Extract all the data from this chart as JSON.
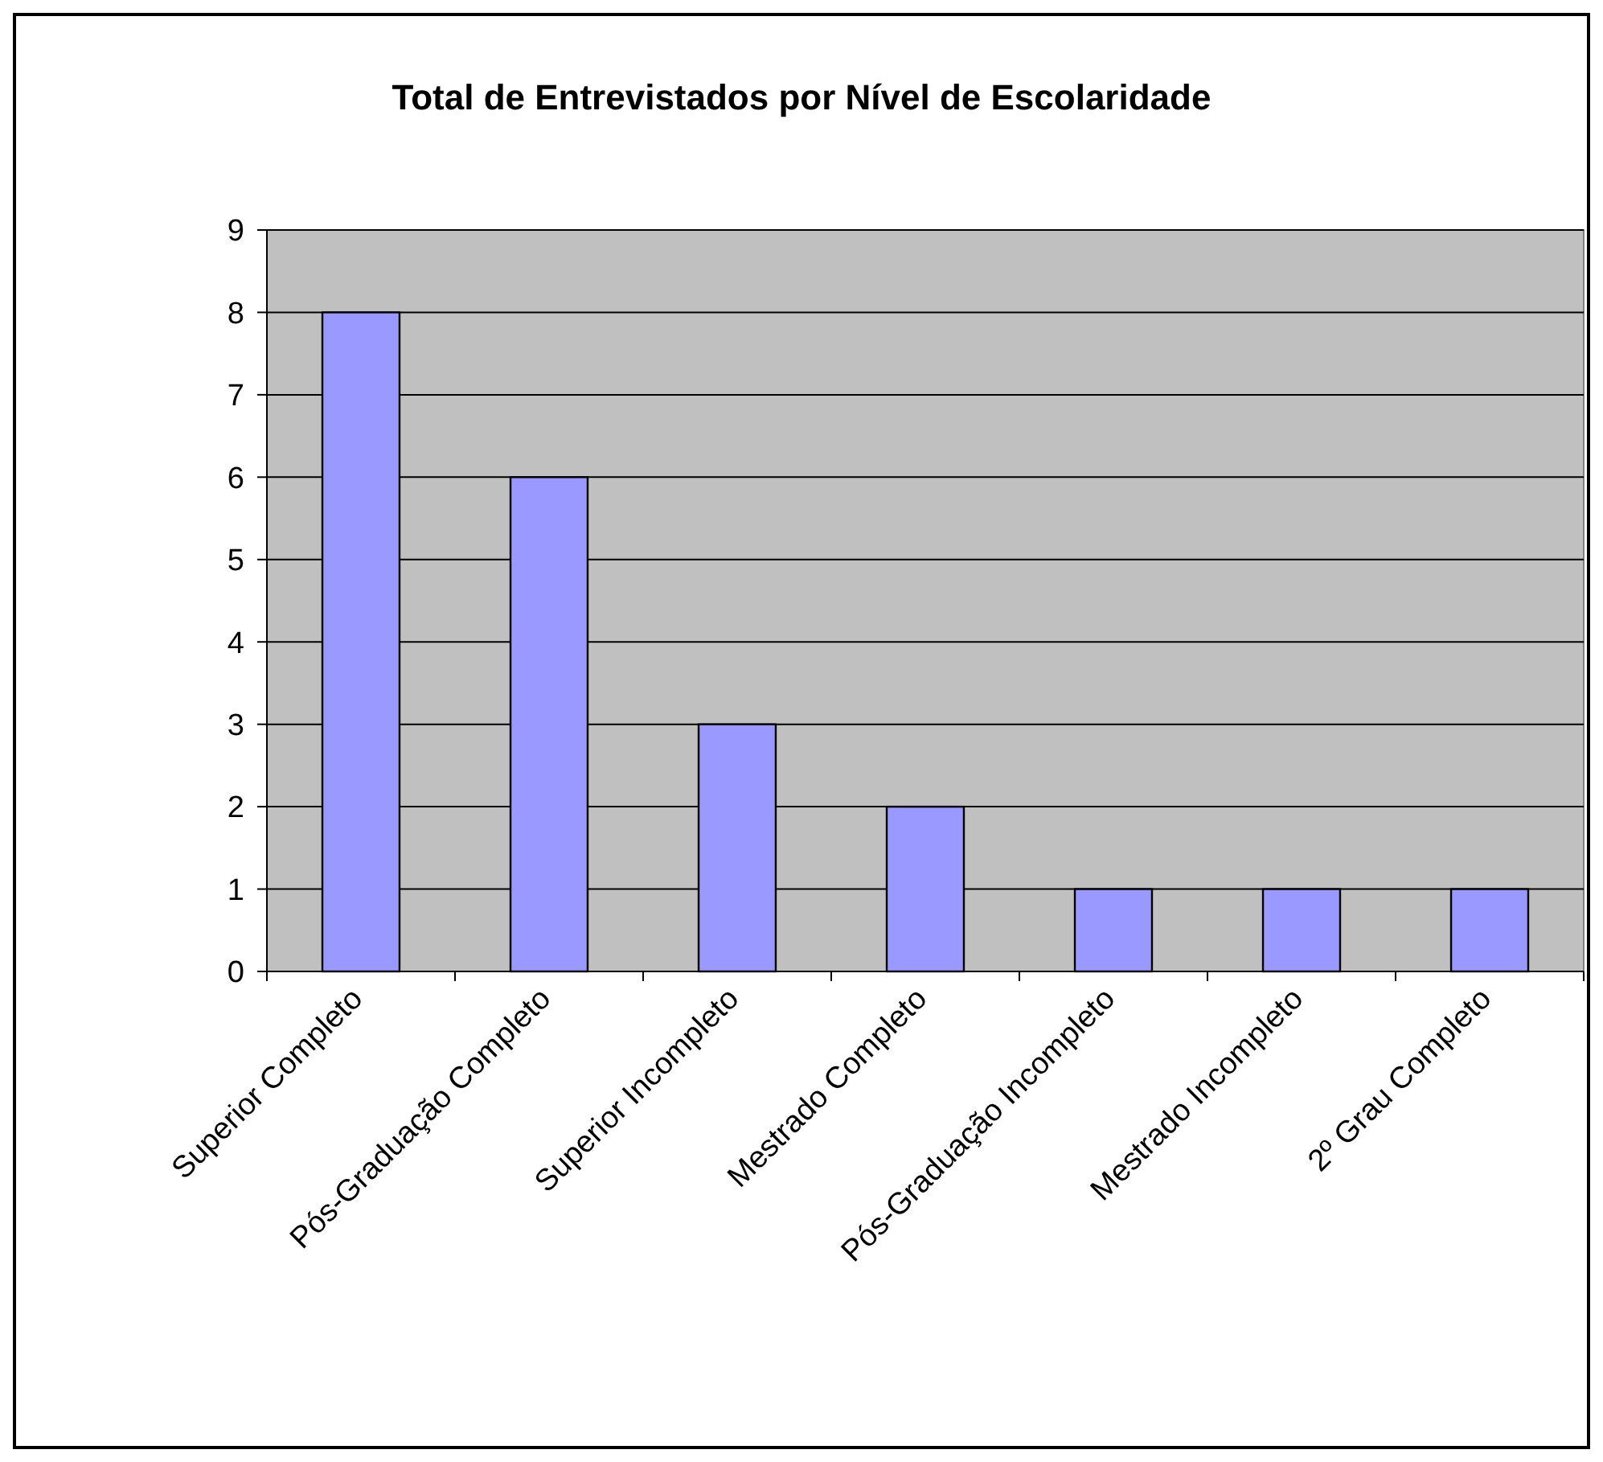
{
  "chart_data": {
    "type": "bar",
    "title": "Total de Entrevistados por Nível de Escolaridade",
    "categories": [
      "Superior Completo",
      "Pós-Graduação Completo",
      "Superior Incompleto",
      "Mestrado Completo",
      "Pós-Graduação Incompleto",
      "Mestrado Incompleto",
      "2º Grau Completo"
    ],
    "values": [
      8,
      6,
      3,
      2,
      1,
      1,
      1
    ],
    "color": "#9999ff",
    "ylim": [
      0,
      9
    ],
    "yticks": [
      0,
      1,
      2,
      3,
      4,
      5,
      6,
      7,
      8,
      9
    ],
    "grid": "y"
  }
}
